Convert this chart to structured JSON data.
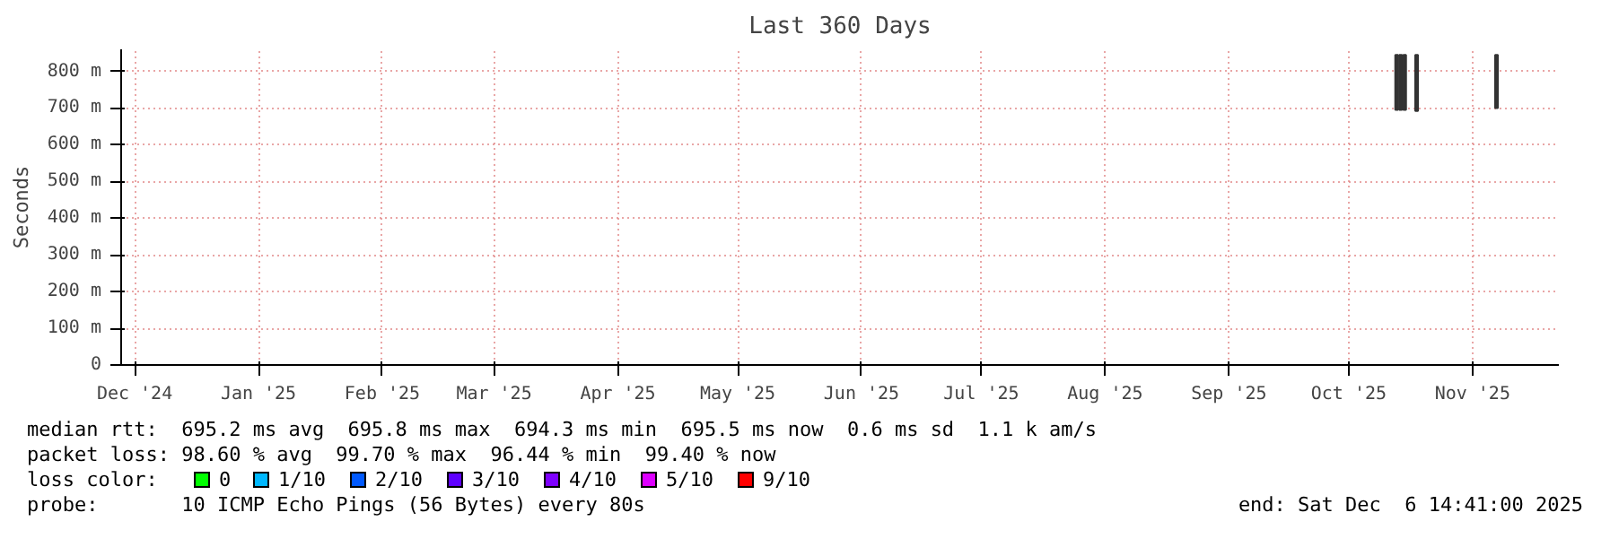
{
  "chart_data": {
    "type": "bar",
    "title": "Last 360 Days",
    "ylabel": "Seconds",
    "x": [
      "2025-10-27",
      "2025-10-28",
      "2025-10-29",
      "2025-11-01",
      "2025-11-21"
    ],
    "base": [
      695,
      695,
      695,
      692,
      700
    ],
    "values": [
      150,
      150,
      150,
      153,
      145
    ],
    "color": "#333333",
    "xlim": [
      "2024-12-11T14:41",
      "2025-12-06T14:41"
    ],
    "xticks": [
      {
        "value": "2024-12-15",
        "label": "Dec '24"
      },
      {
        "value": "2025-01-15",
        "label": "Jan '25"
      },
      {
        "value": "2025-02-15",
        "label": "Feb '25"
      },
      {
        "value": "2025-03-15",
        "label": "Mar '25"
      },
      {
        "value": "2025-04-15",
        "label": "Apr '25"
      },
      {
        "value": "2025-05-15",
        "label": "May '25"
      },
      {
        "value": "2025-06-15",
        "label": "Jun '25"
      },
      {
        "value": "2025-07-15",
        "label": "Jul '25"
      },
      {
        "value": "2025-08-15",
        "label": "Aug '25"
      },
      {
        "value": "2025-09-15",
        "label": "Sep '25"
      },
      {
        "value": "2025-10-15",
        "label": "Oct '25"
      },
      {
        "value": "2025-11-15",
        "label": "Nov '25"
      }
    ],
    "ylim": [
      0,
      860
    ],
    "yticks": [
      0,
      {
        "value": 100,
        "label": "100 m"
      },
      {
        "value": 200,
        "label": "200 m"
      },
      {
        "value": 300,
        "label": "300 m"
      },
      {
        "value": 400,
        "label": "400 m"
      },
      {
        "value": 500,
        "label": "500 m"
      },
      {
        "value": 600,
        "label": "600 m"
      },
      {
        "value": 700,
        "label": "700 m"
      },
      {
        "value": 800,
        "label": "800 m"
      }
    ],
    "grid": true,
    "annotations": [
      "median rtt:  695.2 ms avg  695.8 ms max  694.3 ms min  695.5 ms now  0.6 ms sd  1.1 k am/s",
      "packet loss: 98.60 % avg  99.70 % max  96.44 % min  99.40 % now",
      "loss color:",
      "0",
      "1/10",
      "2/10",
      "3/10",
      "4/10",
      "5/10",
      "9/10",
      "probe:       10 ICMP Echo Pings (56 Bytes) every 80s",
      "end: Sat Dec  6 14:41:00 2025"
    ]
  }
}
